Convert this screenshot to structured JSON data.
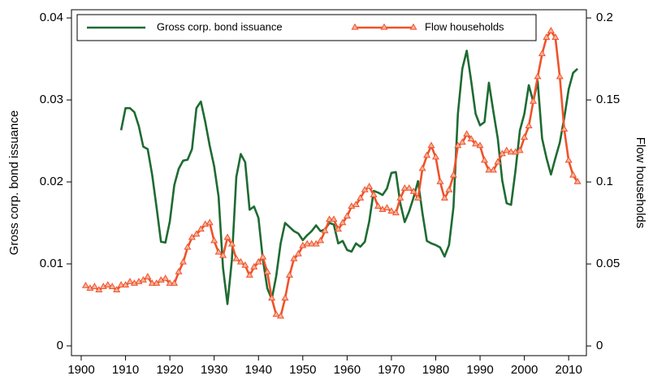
{
  "chart_data": {
    "type": "line",
    "x": [
      1901,
      1902,
      1903,
      1904,
      1905,
      1906,
      1907,
      1908,
      1909,
      1910,
      1911,
      1912,
      1913,
      1914,
      1915,
      1916,
      1917,
      1918,
      1919,
      1920,
      1921,
      1922,
      1923,
      1924,
      1925,
      1926,
      1927,
      1928,
      1929,
      1930,
      1931,
      1932,
      1933,
      1934,
      1935,
      1936,
      1937,
      1938,
      1939,
      1940,
      1941,
      1942,
      1943,
      1944,
      1945,
      1946,
      1947,
      1948,
      1949,
      1950,
      1951,
      1952,
      1953,
      1954,
      1955,
      1956,
      1957,
      1958,
      1959,
      1960,
      1961,
      1962,
      1963,
      1964,
      1965,
      1966,
      1967,
      1968,
      1969,
      1970,
      1971,
      1972,
      1973,
      1974,
      1975,
      1976,
      1977,
      1978,
      1979,
      1980,
      1981,
      1982,
      1983,
      1984,
      1985,
      1986,
      1987,
      1988,
      1989,
      1990,
      1991,
      1992,
      1993,
      1994,
      1995,
      1996,
      1997,
      1998,
      1999,
      2000,
      2001,
      2002,
      2003,
      2004,
      2005,
      2006,
      2007,
      2008,
      2009,
      2010,
      2011,
      2012
    ],
    "series": [
      {
        "name": "Gross corp. bond issuance",
        "color": "#1e6b32",
        "axis": "y",
        "marker": "none",
        "values": [
          null,
          null,
          null,
          null,
          null,
          null,
          null,
          null,
          0.0263,
          0.029,
          0.029,
          0.0285,
          0.0268,
          0.0243,
          0.024,
          0.0209,
          0.0169,
          0.0127,
          0.0126,
          0.0152,
          0.0196,
          0.0216,
          0.0226,
          0.0227,
          0.024,
          0.029,
          0.0298,
          0.0273,
          0.0244,
          0.0219,
          0.0182,
          0.0095,
          0.0051,
          0.0105,
          0.0206,
          0.0234,
          0.0224,
          0.0166,
          0.017,
          0.0156,
          0.0105,
          0.007,
          0.0057,
          0.0085,
          0.0125,
          0.015,
          0.0145,
          0.014,
          0.0137,
          0.0129,
          0.0135,
          0.014,
          0.0147,
          0.014,
          0.0142,
          0.015,
          0.0148,
          0.0125,
          0.0128,
          0.0117,
          0.0115,
          0.0125,
          0.0121,
          0.0127,
          0.0152,
          0.0189,
          0.0187,
          0.0184,
          0.0192,
          0.0211,
          0.0212,
          0.0174,
          0.0151,
          0.0164,
          0.0181,
          0.0201,
          0.0162,
          0.0128,
          0.0125,
          0.0123,
          0.012,
          0.0109,
          0.0123,
          0.0169,
          0.0283,
          0.0338,
          0.036,
          0.0323,
          0.0283,
          0.0269,
          0.0273,
          0.0321,
          0.0286,
          0.0253,
          0.0202,
          0.0174,
          0.0172,
          0.0214,
          0.0263,
          0.0283,
          0.0318,
          0.0298,
          0.0323,
          0.0253,
          0.0229,
          0.0209,
          0.0229,
          0.0248,
          0.0278,
          0.0313,
          0.0333,
          0.0338
        ]
      },
      {
        "name": "Flow households",
        "color": "#f0522a",
        "axis": "y2",
        "marker": "triangle",
        "values": [
          0.0366,
          0.035,
          0.036,
          0.034,
          0.036,
          0.037,
          0.036,
          0.034,
          0.037,
          0.037,
          0.039,
          0.038,
          0.039,
          0.04,
          0.042,
          0.038,
          0.038,
          0.04,
          0.041,
          0.038,
          0.038,
          0.045,
          0.051,
          0.06,
          0.066,
          0.068,
          0.071,
          0.074,
          0.075,
          0.064,
          0.057,
          0.055,
          0.066,
          0.062,
          0.053,
          0.051,
          0.049,
          0.043,
          0.048,
          0.051,
          0.054,
          0.045,
          0.029,
          0.019,
          0.018,
          0.029,
          0.043,
          0.053,
          0.056,
          0.061,
          0.062,
          0.062,
          0.062,
          0.064,
          0.07,
          0.077,
          0.077,
          0.071,
          0.075,
          0.079,
          0.085,
          0.086,
          0.09,
          0.095,
          0.097,
          0.092,
          0.085,
          0.083,
          0.084,
          0.082,
          0.081,
          0.09,
          0.096,
          0.096,
          0.094,
          0.09,
          0.108,
          0.116,
          0.122,
          0.115,
          0.1,
          0.09,
          0.095,
          0.104,
          0.122,
          0.124,
          0.129,
          0.126,
          0.123,
          0.122,
          0.113,
          0.107,
          0.107,
          0.112,
          0.117,
          0.119,
          0.118,
          0.118,
          0.119,
          0.127,
          0.134,
          0.149,
          0.164,
          0.178,
          0.188,
          0.192,
          0.188,
          0.164,
          0.132,
          0.113,
          0.104,
          0.1
        ]
      }
    ],
    "ylabel": "Gross corp. bond issuance",
    "y2label": "Flow households",
    "xlim": [
      1897.8,
      2014
    ],
    "xticks": [
      1900,
      1910,
      1920,
      1930,
      1940,
      1950,
      1960,
      1970,
      1980,
      1990,
      2000,
      2010
    ],
    "ylim": [
      -0.00119,
      0.041
    ],
    "yticks": [
      0,
      0.01,
      0.02,
      0.03,
      0.04
    ],
    "y2lim": [
      -0.0059,
      0.205
    ],
    "y2ticks": [
      0,
      0.05,
      0.1,
      0.15,
      0.2
    ],
    "legend": "top"
  }
}
